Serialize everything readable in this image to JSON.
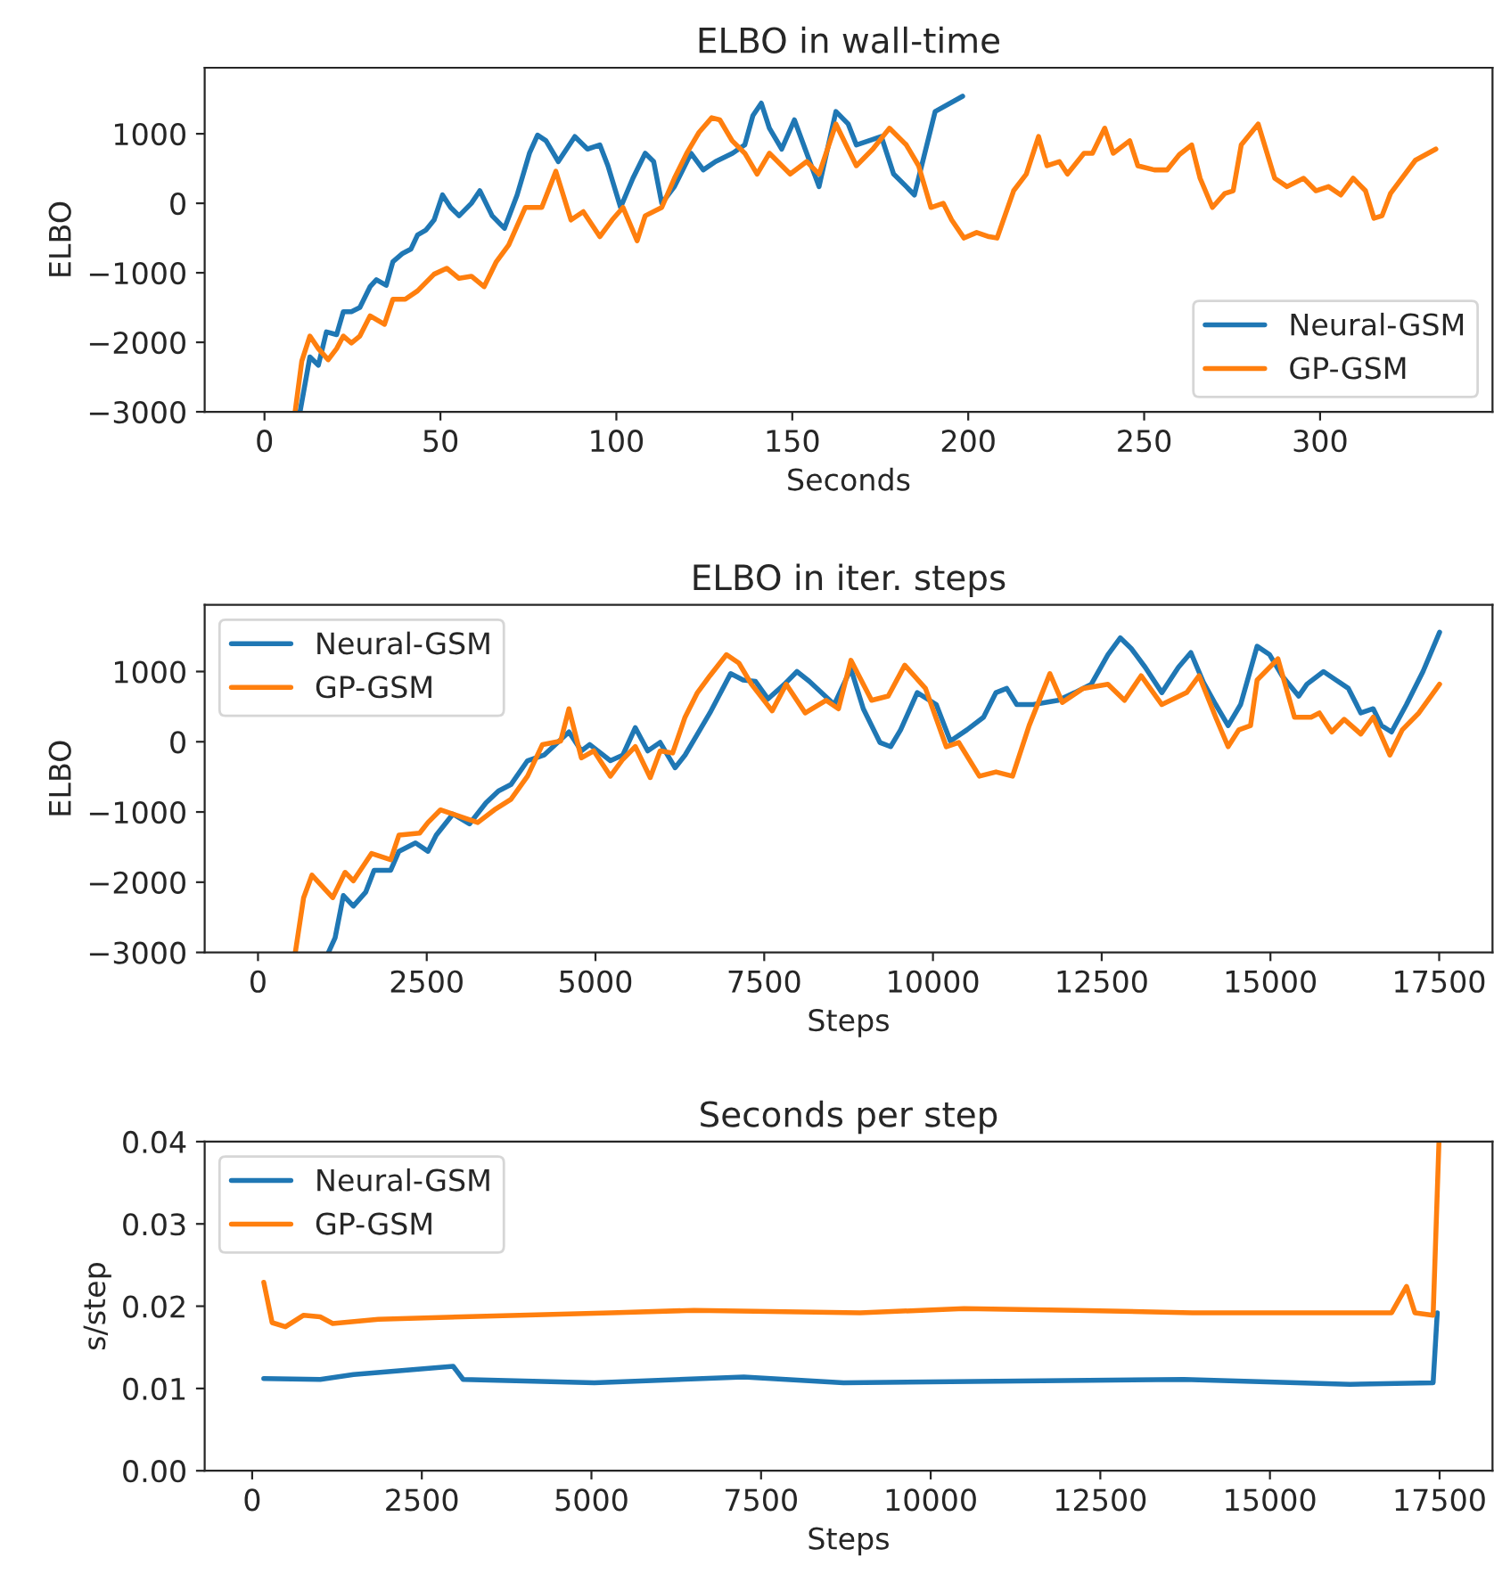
{
  "chart_data": [
    {
      "type": "line",
      "title": "ELBO in wall-time",
      "xlabel": "Seconds",
      "ylabel": "ELBO",
      "xlim": [
        -17,
        349
      ],
      "xticks": [
        0,
        50,
        100,
        150,
        200,
        250,
        300
      ],
      "ylim": [
        -3000,
        1950
      ],
      "yticks": [
        {
          "value": -3000,
          "label": "−3000"
        },
        {
          "value": -2000,
          "label": "−2000"
        },
        {
          "value": -1000,
          "label": "−1000"
        },
        0,
        1000
      ],
      "legend": "bottom right",
      "grid": false,
      "series": [
        {
          "name": "Neural-GSM",
          "color": "#1f77b4",
          "x": [
            10.1,
            12.9,
            15.3,
            17.6,
            20.5,
            22.4,
            24.7,
            27.1,
            30,
            31.8,
            34.6,
            36.5,
            39.3,
            41.6,
            43.5,
            45.9,
            48.2,
            50.6,
            52.9,
            55.3,
            58.8,
            61.2,
            64.7,
            68.2,
            71.8,
            75.3,
            77.6,
            80,
            83.5,
            88.2,
            91.8,
            95.3,
            97.6,
            101.2,
            104.7,
            108.2,
            110.6,
            112.9,
            116.5,
            121.2,
            124.7,
            128.2,
            133,
            136.5,
            138.8,
            141.2,
            143.5,
            147,
            150.6,
            154.1,
            157.6,
            162.4,
            165.9,
            168.2,
            171.8,
            175.3,
            178.8,
            182.4,
            184.7,
            190.6,
            198.4
          ],
          "values": [
            -3000,
            -2210,
            -2330,
            -1850,
            -1890,
            -1560,
            -1560,
            -1500,
            -1200,
            -1100,
            -1180,
            -840,
            -720,
            -660,
            -455,
            -385,
            -240,
            120,
            -60,
            -180,
            0,
            180,
            -180,
            -360,
            120,
            720,
            980,
            900,
            600,
            960,
            780,
            840,
            540,
            -60,
            360,
            720,
            600,
            0,
            240,
            720,
            480,
            600,
            720,
            840,
            1260,
            1440,
            1080,
            780,
            1200,
            720,
            240,
            1320,
            1140,
            840,
            900,
            960,
            420,
            240,
            120,
            1320,
            1540
          ]
        },
        {
          "name": "GP-GSM",
          "color": "#ff7f0e",
          "x": [
            8.7,
            10.6,
            12.9,
            15.3,
            18.1,
            20.5,
            22.4,
            24.7,
            27.1,
            30,
            34.1,
            36.5,
            40,
            43.5,
            48.2,
            51.8,
            55.3,
            58.8,
            62.4,
            65.9,
            69.4,
            74.1,
            78.8,
            82.8,
            87.1,
            90.6,
            95.3,
            98.8,
            101.9,
            105.9,
            108.2,
            112.9,
            116.5,
            120,
            123.5,
            127.1,
            129.4,
            132.9,
            136.5,
            140,
            143.5,
            149.4,
            154.1,
            157.6,
            162.4,
            168.2,
            172.9,
            177.6,
            182.4,
            185.9,
            189.4,
            192.9,
            195.3,
            198.8,
            202.4,
            205.9,
            208.2,
            212.9,
            216.5,
            220,
            222.4,
            225.9,
            228.2,
            232.9,
            235.3,
            238.8,
            241.2,
            245.9,
            248.2,
            252.9,
            256.5,
            260,
            263.5,
            265.9,
            269.4,
            272.9,
            275.3,
            277.6,
            282.4,
            287.1,
            290.6,
            295.3,
            298.8,
            302.4,
            305.9,
            309.4,
            312.9,
            315.3,
            317.6,
            320,
            327.1,
            332.9
          ],
          "values": [
            -3000,
            -2270,
            -1910,
            -2090,
            -2250,
            -2090,
            -1910,
            -2010,
            -1910,
            -1620,
            -1740,
            -1380,
            -1380,
            -1260,
            -1020,
            -935,
            -1080,
            -1050,
            -1200,
            -840,
            -600,
            -60,
            -60,
            460,
            -240,
            -120,
            -480,
            -240,
            -60,
            -540,
            -180,
            -60,
            360,
            720,
            1020,
            1230,
            1200,
            900,
            720,
            420,
            720,
            420,
            600,
            420,
            1140,
            540,
            780,
            1080,
            840,
            540,
            -60,
            0,
            -240,
            -500,
            -420,
            -480,
            -500,
            180,
            420,
            960,
            540,
            600,
            420,
            720,
            720,
            1080,
            720,
            900,
            540,
            480,
            480,
            700,
            840,
            360,
            -60,
            140,
            180,
            840,
            1140,
            360,
            240,
            360,
            180,
            240,
            120,
            360,
            180,
            -215,
            -180,
            140,
            620,
            780
          ]
        }
      ]
    },
    {
      "type": "line",
      "title": "ELBO in iter. steps",
      "xlabel": "Steps",
      "ylabel": "ELBO",
      "xlim": [
        -790,
        18290
      ],
      "xticks": [
        0,
        2500,
        5000,
        7500,
        10000,
        12500,
        15000,
        17500
      ],
      "ylim": [
        -3000,
        1950
      ],
      "yticks": [
        {
          "value": -3000,
          "label": "−3000"
        },
        {
          "value": -2000,
          "label": "−2000"
        },
        {
          "value": -1000,
          "label": "−1000"
        },
        0,
        1000
      ],
      "legend": "top left",
      "grid": false,
      "series": [
        {
          "name": "Neural-GSM",
          "color": "#1f77b4",
          "x": [
            1044,
            1143,
            1265,
            1413,
            1597,
            1720,
            1966,
            2088,
            2334,
            2518,
            2641,
            2887,
            3133,
            3378,
            3563,
            3747,
            3993,
            4238,
            4607,
            4791,
            4914,
            5221,
            5405,
            5590,
            5774,
            5958,
            6179,
            6327,
            6511,
            6695,
            7002,
            7187,
            7371,
            7555,
            7801,
            7985,
            8169,
            8538,
            8784,
            8968,
            9214,
            9373,
            9521,
            9767,
            10049,
            10258,
            10504,
            10749,
            10934,
            11093,
            11241,
            11486,
            11855,
            12101,
            12346,
            12592,
            12776,
            12936,
            13145,
            13391,
            13636,
            13821,
            14005,
            14189,
            14373,
            14558,
            14803,
            14988,
            15172,
            15418,
            15541,
            15786,
            15971,
            16155,
            16339,
            16523,
            16646,
            16794,
            17015,
            17260,
            17506
          ],
          "values": [
            -3000,
            -2790,
            -2190,
            -2340,
            -2140,
            -1830,
            -1830,
            -1560,
            -1440,
            -1560,
            -1330,
            -1030,
            -1170,
            -870,
            -700,
            -610,
            -270,
            -190,
            140,
            -130,
            -40,
            -270,
            -190,
            200,
            -130,
            -10,
            -370,
            -190,
            110,
            410,
            970,
            880,
            860,
            610,
            820,
            1000,
            860,
            530,
            1040,
            470,
            -10,
            -70,
            170,
            700,
            530,
            10,
            170,
            350,
            700,
            760,
            530,
            530,
            590,
            700,
            820,
            1240,
            1480,
            1330,
            1060,
            700,
            1060,
            1270,
            850,
            530,
            230,
            530,
            1360,
            1240,
            940,
            650,
            820,
            1000,
            880,
            760,
            410,
            470,
            230,
            140,
            530,
            1000,
            1560
          ]
        },
        {
          "name": "GP-GSM",
          "color": "#ff7f0e",
          "x": [
            553,
            676,
            799,
            1106,
            1290,
            1413,
            1683,
            1966,
            2088,
            2395,
            2518,
            2703,
            2887,
            3256,
            3501,
            3747,
            3993,
            4214,
            4484,
            4607,
            4791,
            4975,
            5221,
            5405,
            5590,
            5811,
            5958,
            6143,
            6327,
            6511,
            6695,
            6941,
            7125,
            7310,
            7617,
            7826,
            8108,
            8415,
            8600,
            8784,
            9091,
            9337,
            9582,
            9889,
            10197,
            10381,
            10688,
            10934,
            11179,
            11425,
            11732,
            11916,
            12224,
            12592,
            12838,
            13084,
            13391,
            13759,
            13943,
            14189,
            14373,
            14533,
            14705,
            14803,
            15111,
            15356,
            15602,
            15725,
            15909,
            16093,
            16339,
            16523,
            16769,
            16953,
            17199,
            17506
          ],
          "values": [
            -3000,
            -2220,
            -1900,
            -2220,
            -1860,
            -1980,
            -1590,
            -1680,
            -1330,
            -1300,
            -1150,
            -970,
            -1030,
            -1150,
            -970,
            -820,
            -490,
            -40,
            10,
            470,
            -230,
            -130,
            -490,
            -250,
            -70,
            -510,
            -130,
            -160,
            350,
            700,
            940,
            1240,
            1120,
            820,
            440,
            820,
            410,
            590,
            470,
            1160,
            590,
            650,
            1090,
            760,
            -70,
            -10,
            -490,
            -430,
            -490,
            230,
            970,
            560,
            760,
            820,
            590,
            940,
            530,
            700,
            940,
            350,
            -70,
            170,
            230,
            880,
            1180,
            350,
            350,
            410,
            140,
            320,
            110,
            350,
            -190,
            170,
            410,
            820
          ]
        }
      ]
    },
    {
      "type": "line",
      "title": "Seconds per step",
      "xlabel": "Steps",
      "ylabel": "s/step",
      "xlim": [
        -700,
        18280
      ],
      "xticks": [
        0,
        2500,
        5000,
        7500,
        10000,
        12500,
        15000,
        17500
      ],
      "ylim": [
        0,
        0.04
      ],
      "yticks": [
        {
          "value": 0,
          "label": "0.00"
        },
        {
          "value": 0.01,
          "label": "0.01"
        },
        {
          "value": 0.02,
          "label": "0.02"
        },
        {
          "value": 0.03,
          "label": "0.03"
        },
        {
          "value": 0.04,
          "label": "0.04"
        }
      ],
      "legend": "top left",
      "grid": false,
      "series": [
        {
          "name": "Neural-GSM",
          "color": "#1f77b4",
          "x": [
            171,
            1003,
            1493,
            2962,
            3109,
            5043,
            7246,
            8715,
            13733,
            16181,
            17405,
            17466
          ],
          "values": [
            0.0112,
            0.0111,
            0.0117,
            0.0127,
            0.0111,
            0.0107,
            0.0114,
            0.0107,
            0.0111,
            0.0105,
            0.0107,
            0.0192
          ]
        },
        {
          "name": "GP-GSM",
          "color": "#ff7f0e",
          "x": [
            171,
            294,
            490,
            759,
            1003,
            1187,
            1860,
            3084,
            5288,
            6512,
            8960,
            10490,
            12142,
            13855,
            16303,
            16793,
            17013,
            17136,
            17405,
            17491
          ],
          "values": [
            0.0229,
            0.018,
            0.0175,
            0.0189,
            0.0187,
            0.0179,
            0.0184,
            0.0187,
            0.0192,
            0.0195,
            0.0192,
            0.0197,
            0.0195,
            0.0192,
            0.0192,
            0.0192,
            0.0224,
            0.0192,
            0.0189,
            0.04
          ]
        }
      ]
    }
  ]
}
